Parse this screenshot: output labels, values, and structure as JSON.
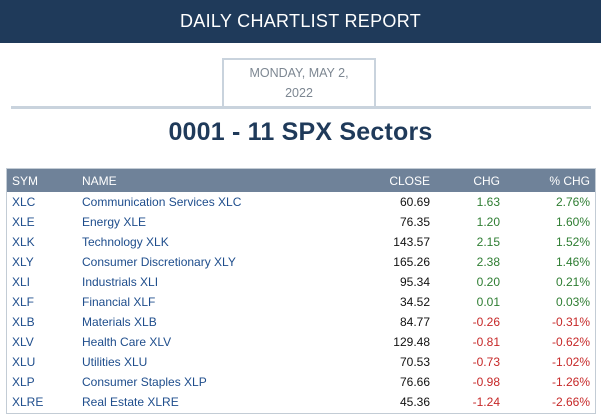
{
  "header": {
    "title": "DAILY CHARTLIST REPORT"
  },
  "date": {
    "line1": "MONDAY, MAY 2,",
    "line2": "2022"
  },
  "report_title": "0001 - 11 SPX Sectors",
  "table": {
    "columns": {
      "sym": "SYM",
      "name": "NAME",
      "close": "CLOSE",
      "chg": "CHG",
      "pct": "% CHG"
    },
    "rows": [
      {
        "sym": "XLC",
        "name": "Communication Services XLC",
        "close": "60.69",
        "chg": "1.63",
        "pct": "2.76%",
        "dir": "pos"
      },
      {
        "sym": "XLE",
        "name": "Energy XLE",
        "close": "76.35",
        "chg": "1.20",
        "pct": "1.60%",
        "dir": "pos"
      },
      {
        "sym": "XLK",
        "name": "Technology XLK",
        "close": "143.57",
        "chg": "2.15",
        "pct": "1.52%",
        "dir": "pos"
      },
      {
        "sym": "XLY",
        "name": "Consumer Discretionary XLY",
        "close": "165.26",
        "chg": "2.38",
        "pct": "1.46%",
        "dir": "pos"
      },
      {
        "sym": "XLI",
        "name": "Industrials XLI",
        "close": "95.34",
        "chg": "0.20",
        "pct": "0.21%",
        "dir": "pos"
      },
      {
        "sym": "XLF",
        "name": "Financial XLF",
        "close": "34.52",
        "chg": "0.01",
        "pct": "0.03%",
        "dir": "pos"
      },
      {
        "sym": "XLB",
        "name": "Materials XLB",
        "close": "84.77",
        "chg": "-0.26",
        "pct": "-0.31%",
        "dir": "neg"
      },
      {
        "sym": "XLV",
        "name": "Health Care XLV",
        "close": "129.48",
        "chg": "-0.81",
        "pct": "-0.62%",
        "dir": "neg"
      },
      {
        "sym": "XLU",
        "name": "Utilities XLU",
        "close": "70.53",
        "chg": "-0.73",
        "pct": "-1.02%",
        "dir": "neg"
      },
      {
        "sym": "XLP",
        "name": "Consumer Staples XLP",
        "close": "76.66",
        "chg": "-0.98",
        "pct": "-1.26%",
        "dir": "neg"
      },
      {
        "sym": "XLRE",
        "name": "Real Estate XLRE",
        "close": "45.36",
        "chg": "-1.24",
        "pct": "-2.66%",
        "dir": "neg"
      }
    ]
  },
  "colors": {
    "header_bg": "#1f3a5a",
    "table_head_bg": "#6f8299",
    "positive": "#2e7d32",
    "negative": "#c62828",
    "link": "#1e4d8c"
  }
}
